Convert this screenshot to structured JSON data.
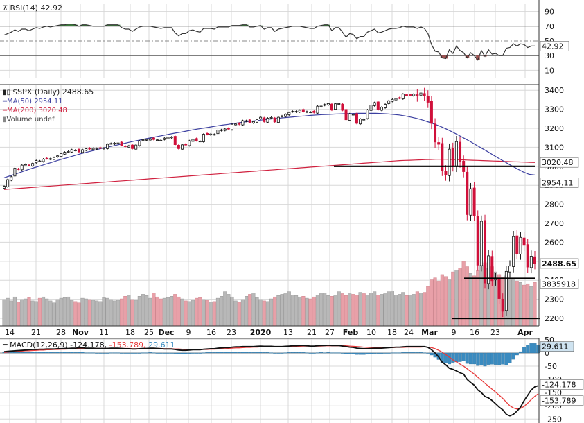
{
  "colors": {
    "up_candle_fill": "#ffffff",
    "down_candle_fill": "#d0103a",
    "ma50": "#3b3fa0",
    "ma200": "#d0213f",
    "macd_line": "#111111",
    "signal_line": "#e83a3a",
    "histogram": "#3a8bc0",
    "rsi_line": "#333333",
    "rsi_over_fill": "#3d7a3d",
    "rsi_under_fill": "#a05050",
    "volume_up": "#b8b8b8",
    "volume_down": "#e8a0a8",
    "grid": "#d8d8d8"
  },
  "rsi_panel": {
    "title": "RSI(14) 42.92",
    "last_value": "42.92",
    "ticks": [
      "90",
      "70",
      "50",
      "30",
      "10"
    ]
  },
  "price_panel": {
    "title": "$SPX (Daily) 2488.65",
    "legend": [
      {
        "text": "MA(50) 2954.11",
        "color": "#3b3fa0"
      },
      {
        "text": "MA(200) 3020.48",
        "color": "#d0213f"
      },
      {
        "text": "Volume undef",
        "color": "#888888"
      }
    ],
    "y_ticks": [
      "3400",
      "3300",
      "3200",
      "3100",
      "3000",
      "2900",
      "2800",
      "2700",
      "2600",
      "2500",
      "2400",
      "2300",
      "2200"
    ],
    "price_label": "2488.65",
    "ma200_label": "3020.48",
    "ma50_label": "2954.11",
    "volume_label": "3835918",
    "x_ticks": [
      "14",
      "21",
      "28",
      "Nov",
      "11",
      "18",
      "25",
      "Dec",
      "9",
      "16",
      "23",
      "2020",
      "13",
      "21",
      "27",
      "Feb",
      "10",
      "18",
      "24",
      "Mar",
      "9",
      "16",
      "23",
      "Apr"
    ],
    "x_ticks_bold": [
      "Nov",
      "Dec",
      "2020",
      "Feb",
      "Mar",
      "Apr"
    ]
  },
  "macd_panel": {
    "title_parts": [
      {
        "text": "MACD(12,26,9) -124.178, ",
        "color": "#111111"
      },
      {
        "text": "-153.789, ",
        "color": "#e83a3a"
      },
      {
        "text": "29.611",
        "color": "#3a8bc0"
      }
    ],
    "ticks": [
      "50",
      "0",
      "-50",
      "-100",
      "-150",
      "-200",
      "-250"
    ],
    "labels": [
      {
        "text": "29.611",
        "color": "#3a8bc0"
      },
      {
        "text": "-124.178",
        "color": "#111111"
      },
      {
        "text": "-153.789",
        "color": "#e83a3a"
      }
    ]
  },
  "chart_data": {
    "type": "candlestick",
    "title": "$SPX (Daily) 2488.65",
    "symbol": "$SPX",
    "period": "Daily",
    "last_close": 2488.65,
    "ylim": [
      2160,
      3430
    ],
    "annotations": {
      "horizontal_lines": [
        3000,
        2410,
        2200
      ]
    },
    "close": [
      2895,
      2930,
      2945,
      2990,
      2985,
      3006,
      3010,
      3005,
      3015,
      3030,
      3028,
      3038,
      3040,
      3040,
      3046,
      3055,
      3067,
      3074,
      3078,
      3087,
      3085,
      3076,
      3087,
      3092,
      3091,
      3094,
      3094,
      3095,
      3096,
      3116,
      3120,
      3122,
      3123,
      3110,
      3104,
      3108,
      3093,
      3112,
      3133,
      3140,
      3141,
      3145,
      3141,
      3139,
      3137,
      3148,
      3153,
      3154,
      3114,
      3093,
      3113,
      3112,
      3134,
      3142,
      3135,
      3132,
      3169,
      3168,
      3170,
      3168,
      3191,
      3192,
      3196,
      3196,
      3221,
      3223,
      3221,
      3240,
      3240,
      3231,
      3235,
      3246,
      3258,
      3235,
      3253,
      3257,
      3234,
      3258,
      3265,
      3274,
      3283,
      3289,
      3289,
      3295,
      3288,
      3288,
      3286,
      3283,
      3316,
      3317,
      3325,
      3330,
      3296,
      3329,
      3330,
      3295,
      3245,
      3276,
      3273,
      3226,
      3249,
      3247,
      3297,
      3322,
      3335,
      3298,
      3311,
      3326,
      3345,
      3352,
      3357,
      3358,
      3380,
      3373,
      3374,
      3380,
      3370,
      3386,
      3373,
      3337,
      3226,
      3128,
      3116,
      2979,
      2954,
      3090,
      3003,
      3130,
      3023,
      2972,
      2746,
      2882,
      2741,
      2480,
      2711,
      2386,
      2529,
      2398,
      2409,
      2304,
      2237,
      2447,
      2475,
      2630,
      2541,
      2626,
      2584,
      2470,
      2527,
      2488
    ],
    "ma50": [
      2940,
      2950,
      2960,
      2971,
      2982,
      2992,
      3001,
      3011,
      3020,
      3030,
      3039,
      3048,
      3057,
      3066,
      3074,
      3082,
      3090,
      3097,
      3104,
      3111,
      3118,
      3125,
      3132,
      3138,
      3145,
      3151,
      3157,
      3163,
      3169,
      3175,
      3180,
      3186,
      3192,
      3197,
      3202,
      3207,
      3212,
      3217,
      3221,
      3226,
      3230,
      3234,
      3238,
      3241,
      3245,
      3248,
      3251,
      3254,
      3257,
      3260,
      3263,
      3265,
      3268,
      3270,
      3272,
      3273,
      3275,
      3276,
      3277,
      3278,
      3279,
      3279,
      3279,
      3279,
      3278,
      3276,
      3273,
      3270,
      3265,
      3259,
      3252,
      3243,
      3233,
      3222,
      3210,
      3196,
      3181,
      3165,
      3148,
      3131,
      3113,
      3095,
      3077,
      3058,
      3040,
      3022,
      3004,
      2987,
      2971,
      2958,
      2954
    ],
    "ma50_start_index": 61,
    "ma200": [
      2878,
      2880,
      2882,
      2884,
      2886,
      2888,
      2890,
      2892,
      2894,
      2896,
      2898,
      2900,
      2902,
      2904,
      2906,
      2908,
      2910,
      2912,
      2914,
      2916,
      2918,
      2920,
      2922,
      2924,
      2926,
      2928,
      2930,
      2932,
      2934,
      2936,
      2938,
      2940,
      2942,
      2944,
      2946,
      2948,
      2950,
      2952,
      2954,
      2956,
      2958,
      2960,
      2962,
      2964,
      2966,
      2968,
      2970,
      2972,
      2974,
      2976,
      2978,
      2980,
      2982,
      2984,
      2986,
      2988,
      2990,
      2992,
      2994,
      2996,
      2998,
      3000,
      3002,
      3004,
      3006,
      3008,
      3010,
      3012,
      3014,
      3016,
      3018,
      3020,
      3022,
      3024,
      3026,
      3028,
      3030,
      3031,
      3032,
      3033,
      3034,
      3035,
      3036,
      3037,
      3037,
      3037,
      3036,
      3035,
      3034,
      3033,
      3032,
      3031,
      3030,
      3029,
      3028,
      3027,
      3026,
      3025,
      3024,
      3023,
      3022,
      3021,
      3020
    ],
    "ma200_start_index": 51,
    "volume": [
      0.4,
      0.42,
      0.38,
      0.44,
      0.36,
      0.4,
      0.41,
      0.43,
      0.38,
      0.37,
      0.42,
      0.44,
      0.41,
      0.38,
      0.35,
      0.4,
      0.42,
      0.43,
      0.44,
      0.39,
      0.37,
      0.35,
      0.42,
      0.41,
      0.4,
      0.39,
      0.38,
      0.37,
      0.43,
      0.42,
      0.4,
      0.38,
      0.39,
      0.41,
      0.45,
      0.47,
      0.4,
      0.39,
      0.45,
      0.48,
      0.46,
      0.42,
      0.5,
      0.44,
      0.41,
      0.42,
      0.43,
      0.45,
      0.48,
      0.44,
      0.41,
      0.38,
      0.37,
      0.39,
      0.42,
      0.43,
      0.4,
      0.39,
      0.36,
      0.37,
      0.42,
      0.45,
      0.52,
      0.48,
      0.44,
      0.38,
      0.36,
      0.4,
      0.45,
      0.48,
      0.5,
      0.43,
      0.4,
      0.38,
      0.37,
      0.41,
      0.44,
      0.46,
      0.48,
      0.5,
      0.52,
      0.47,
      0.46,
      0.44,
      0.45,
      0.42,
      0.41,
      0.44,
      0.47,
      0.49,
      0.5,
      0.46,
      0.45,
      0.47,
      0.52,
      0.49,
      0.46,
      0.5,
      0.48,
      0.47,
      0.51,
      0.49,
      0.47,
      0.5,
      0.52,
      0.47,
      0.48,
      0.5,
      0.52,
      0.53,
      0.47,
      0.48,
      0.51,
      0.46,
      0.47,
      0.48,
      0.52,
      0.5,
      0.51,
      0.6,
      0.7,
      0.73,
      0.68,
      0.78,
      0.75,
      0.7,
      0.82,
      0.85,
      0.88,
      0.98,
      0.9,
      0.8,
      0.76,
      0.85,
      0.92,
      0.96,
      0.88,
      0.9,
      0.82,
      0.78,
      0.74,
      0.76,
      0.7,
      0.72,
      0.68,
      0.66,
      0.62,
      0.64,
      0.6,
      0.66
    ],
    "macd": [
      5,
      6,
      7,
      8,
      9,
      10,
      11,
      12,
      13,
      13,
      14,
      14,
      15,
      15,
      15,
      16,
      16,
      17,
      17,
      18,
      18,
      19,
      19,
      18,
      18,
      18,
      17,
      17,
      17,
      17,
      18,
      18,
      18,
      17,
      16,
      16,
      15,
      15,
      16,
      17,
      17,
      18,
      18,
      17,
      16,
      15,
      15,
      15,
      13,
      11,
      10,
      10,
      11,
      12,
      12,
      12,
      14,
      15,
      16,
      16,
      18,
      19,
      20,
      20,
      22,
      23,
      23,
      24,
      24,
      24,
      24,
      25,
      26,
      25,
      25,
      25,
      24,
      24,
      24,
      25,
      26,
      27,
      27,
      28,
      28,
      27,
      26,
      26,
      27,
      28,
      28,
      29,
      28,
      28,
      28,
      26,
      24,
      22,
      21,
      18,
      17,
      16,
      16,
      17,
      18,
      18,
      18,
      19,
      20,
      21,
      22,
      22,
      23,
      24,
      24,
      24,
      24,
      24,
      24,
      21,
      12,
      0,
      -15,
      -35,
      -45,
      -58,
      -62,
      -68,
      -75,
      -80,
      -100,
      -112,
      -122,
      -140,
      -150,
      -165,
      -170,
      -180,
      -192,
      -205,
      -215,
      -232,
      -238,
      -232,
      -220,
      -205,
      -180,
      -160,
      -140,
      -128,
      -124
    ],
    "signal": [
      2,
      3,
      4,
      5,
      6,
      7,
      8,
      8,
      9,
      10,
      11,
      11,
      12,
      12,
      13,
      13,
      14,
      14,
      15,
      15,
      16,
      16,
      16,
      17,
      17,
      17,
      17,
      17,
      17,
      17,
      17,
      17,
      17,
      17,
      17,
      17,
      16,
      16,
      16,
      16,
      16,
      16,
      17,
      17,
      17,
      16,
      16,
      16,
      15,
      15,
      14,
      13,
      13,
      13,
      13,
      13,
      13,
      13,
      14,
      14,
      15,
      16,
      16,
      17,
      18,
      19,
      19,
      20,
      21,
      21,
      22,
      22,
      23,
      23,
      23,
      24,
      24,
      24,
      24,
      24,
      24,
      25,
      25,
      25,
      26,
      26,
      26,
      26,
      26,
      26,
      27,
      27,
      27,
      27,
      27,
      27,
      27,
      26,
      25,
      24,
      23,
      22,
      21,
      21,
      20,
      20,
      20,
      20,
      20,
      20,
      21,
      21,
      21,
      22,
      22,
      22,
      22,
      22,
      23,
      22,
      20,
      16,
      10,
      3,
      -6,
      -16,
      -26,
      -34,
      -42,
      -50,
      -60,
      -70,
      -80,
      -92,
      -103,
      -115,
      -126,
      -137,
      -148,
      -160,
      -172,
      -186,
      -200,
      -208,
      -212,
      -210,
      -202,
      -190,
      -176,
      -164,
      -154
    ],
    "hist": [
      3,
      3,
      3,
      3,
      3,
      3,
      3,
      4,
      4,
      3,
      3,
      3,
      3,
      3,
      2,
      3,
      2,
      3,
      2,
      3,
      2,
      3,
      3,
      1,
      1,
      1,
      0,
      0,
      0,
      0,
      1,
      1,
      1,
      0,
      -1,
      -1,
      -1,
      -1,
      0,
      1,
      1,
      2,
      1,
      0,
      -1,
      -1,
      -1,
      -1,
      -2,
      -4,
      -4,
      -3,
      -2,
      -1,
      -1,
      -1,
      1,
      2,
      2,
      2,
      3,
      3,
      4,
      3,
      4,
      4,
      4,
      4,
      3,
      3,
      2,
      3,
      3,
      2,
      2,
      1,
      0,
      0,
      0,
      1,
      2,
      2,
      2,
      3,
      2,
      1,
      0,
      0,
      1,
      2,
      1,
      2,
      1,
      1,
      1,
      -1,
      -3,
      -4,
      -4,
      -6,
      -6,
      -6,
      -5,
      -4,
      -2,
      -2,
      -2,
      -1,
      0,
      1,
      1,
      1,
      2,
      2,
      2,
      2,
      2,
      2,
      1,
      -1,
      -8,
      -16,
      -25,
      -38,
      -39,
      -42,
      -36,
      -34,
      -33,
      -30,
      -40,
      -42,
      -42,
      -48,
      -47,
      -50,
      -44,
      -43,
      -44,
      -45,
      -43,
      -46,
      -38,
      -24,
      -8,
      5,
      22,
      30,
      36,
      36,
      30
    ],
    "rsi": [
      58,
      60,
      62,
      65,
      63,
      66,
      66,
      64,
      66,
      68,
      67,
      69,
      70,
      69,
      70,
      71,
      72,
      72,
      73,
      73,
      72,
      70,
      72,
      72,
      71,
      70,
      70,
      70,
      70,
      72,
      72,
      72,
      72,
      68,
      66,
      66,
      63,
      66,
      69,
      70,
      70,
      70,
      69,
      68,
      67,
      68,
      68,
      68,
      61,
      57,
      60,
      60,
      64,
      65,
      63,
      62,
      67,
      67,
      67,
      66,
      69,
      69,
      69,
      69,
      71,
      71,
      71,
      72,
      72,
      69,
      69,
      70,
      71,
      66,
      68,
      68,
      63,
      66,
      67,
      68,
      69,
      70,
      70,
      70,
      69,
      68,
      67,
      67,
      70,
      71,
      72,
      72,
      64,
      68,
      68,
      62,
      55,
      60,
      59,
      53,
      56,
      56,
      62,
      64,
      66,
      61,
      62,
      64,
      66,
      67,
      67,
      68,
      70,
      69,
      69,
      69,
      67,
      69,
      67,
      60,
      45,
      36,
      35,
      27,
      26,
      38,
      33,
      43,
      37,
      34,
      27,
      34,
      30,
      24,
      37,
      29,
      38,
      32,
      33,
      30,
      30,
      40,
      41,
      46,
      43,
      46,
      45,
      41,
      43,
      43
    ]
  }
}
